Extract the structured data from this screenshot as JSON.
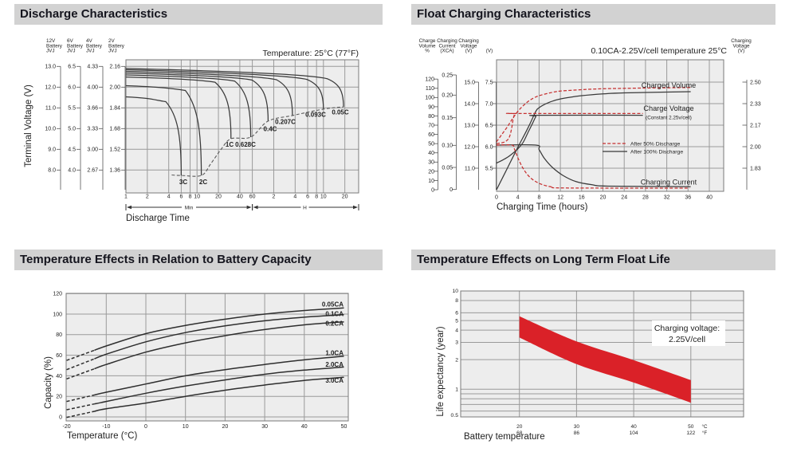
{
  "headers": {
    "discharge": "Discharge Characteristics",
    "float_charging": "Float Charging Characteristics",
    "temp_capacity": "Temperature Effects in Relation to Battery Capacity",
    "float_life": "Temperature Effects on Long Term Float Life"
  },
  "colors": {
    "header_bg": "#d2d2d2",
    "header_text": "#15151e",
    "plot_bg": "#ededed",
    "grid": "#9a9a9a",
    "frame": "#7a7a7a",
    "curve": "#3a3a3a",
    "red_label": "#c42527",
    "red_curve": "#c63030",
    "band_red": "#da2128",
    "cutoff_gray": "#5a5a5a"
  },
  "chart_data": [
    {
      "type": "line",
      "title": "Discharge Characteristics",
      "temperature_note": "Temperature: 25°C (77°F)",
      "xlabel": "Discharge Time",
      "ylabel": "Terminal Voltage (V)",
      "x_unit_spans": [
        "Min",
        "H"
      ],
      "scales": [
        {
          "header": [
            "12V",
            "Battery",
            "JVJ"
          ],
          "ticks": [
            "13.0",
            "12.0",
            "11.0",
            "10.0",
            "9.0",
            "8.0"
          ]
        },
        {
          "header": [
            "6V",
            "Battery",
            "JVJ"
          ],
          "ticks": [
            "6.5",
            "6.0",
            "5.5",
            "5.0",
            "4.5",
            "4.0"
          ]
        },
        {
          "header": [
            "4V",
            "Battery",
            "JVJ"
          ],
          "ticks": [
            "4.33",
            "4.00",
            "3.66",
            "3.33",
            "3.00",
            "2.67"
          ]
        },
        {
          "header": [
            "2V",
            "Battery",
            "JVJ"
          ],
          "ticks": [
            "2.16",
            "2.00",
            "1.84",
            "1.68",
            "1.52",
            "1.36"
          ]
        }
      ],
      "x_ticks_min": [
        1,
        2,
        4,
        6,
        8,
        10,
        20,
        40,
        60
      ],
      "x_ticks_hours": [
        2,
        4,
        6,
        8,
        10,
        20
      ],
      "series": [
        {
          "label": "3C",
          "v_start": 11.53,
          "t_end_min": 6,
          "v_end": 7.74
        },
        {
          "label": "2C",
          "v_start": 12.07,
          "t_end_min": 11.5,
          "v_end": 7.74
        },
        {
          "label": "1C",
          "v_start": 12.49,
          "t_end_min": 30,
          "v_end": 9.51
        },
        {
          "label": "0.628C",
          "v_start": 12.59,
          "t_end_min": 57,
          "v_end": 9.59
        },
        {
          "label": "0.4C",
          "v_start": 12.68,
          "t_end_min": 100,
          "v_end": 10.36
        },
        {
          "label": "0.207C",
          "v_start": 12.76,
          "t_end_min": 220,
          "v_end": 10.63
        },
        {
          "label": "0.093C",
          "v_start": 12.84,
          "t_end_min": 600,
          "v_end": 10.94
        },
        {
          "label": "0.05C",
          "v_start": 12.9,
          "t_end_min": 1150,
          "v_end": 11.05
        }
      ],
      "cutoff_line_t_v": [
        [
          4.4,
          7.76
        ],
        [
          6,
          7.74
        ],
        [
          11.5,
          7.74
        ],
        [
          15.6,
          8.3
        ],
        [
          21.8,
          9.0
        ],
        [
          30,
          9.51
        ],
        [
          57,
          9.59
        ],
        [
          100,
          10.36
        ],
        [
          220,
          10.63
        ],
        [
          600,
          10.94
        ],
        [
          1150,
          11.05
        ]
      ]
    },
    {
      "type": "line",
      "title": "Float Charging Characteristics",
      "condition_note": "0.10CA-2.25V/cell  temperature 25°C",
      "xlabel": "Charging Time (hours)",
      "x_ticks": [
        0,
        4,
        8,
        12,
        16,
        20,
        24,
        28,
        32,
        36,
        40
      ],
      "axes": [
        {
          "header": [
            "Charge",
            "Volume",
            "%"
          ],
          "ticks": [
            "120",
            "110",
            "100",
            "90",
            "80",
            "70",
            "60",
            "50",
            "40",
            "30",
            "20",
            "10",
            "0"
          ]
        },
        {
          "header": [
            "Charging",
            "Current",
            "(XCA)"
          ],
          "ticks": [
            "0.25",
            "0.20",
            "0.15",
            "0.10",
            "0.05",
            "0"
          ]
        },
        {
          "header": [
            "Charging",
            "Voltage",
            "(V)"
          ],
          "ticks": [
            "15.0",
            "14.0",
            "13.0",
            "12.0",
            "11.0"
          ]
        },
        {
          "header": [
            "",
            "",
            "(V)"
          ],
          "ticks": [
            "7.5",
            "7.0",
            "6.5",
            "6.0",
            "5.5"
          ]
        }
      ],
      "right_axis": {
        "header": [
          "Charging",
          "Voltage",
          "(V)"
        ],
        "ticks": [
          "2.50",
          "2.33",
          "2.17",
          "2.00",
          "1.83"
        ]
      },
      "curve_labels": {
        "charged_volume": "Charged Volume",
        "charge_voltage": "Charge Voltage",
        "constant_note": "(Constant 2.25v/cell)",
        "charging_current": "Charging Current"
      },
      "legend": [
        {
          "label": "After  50% Discharge",
          "style": "dashed-red"
        },
        {
          "label": "After 100% Discharge",
          "style": "solid-black"
        }
      ],
      "series": [
        {
          "name": "charged-volume-100",
          "style": "solid",
          "scale": "pct",
          "points": [
            [
              0,
              0
            ],
            [
              2,
              23
            ],
            [
              4,
              46
            ],
            [
              6,
              68
            ],
            [
              7.3,
              84
            ],
            [
              8,
              89
            ],
            [
              10,
              95
            ],
            [
              12,
              98.5
            ],
            [
              16,
              102
            ],
            [
              20,
              104
            ],
            [
              24,
              105
            ],
            [
              28,
              105.5
            ],
            [
              36.5,
              106.3
            ]
          ]
        },
        {
          "name": "charge-voltage-100",
          "style": "solid",
          "scale": "v6",
          "points": [
            [
              0,
              5.62
            ],
            [
              1,
              5.68
            ],
            [
              2,
              5.75
            ],
            [
              3,
              5.84
            ],
            [
              4,
              5.95
            ],
            [
              5,
              6.1
            ],
            [
              6,
              6.35
            ],
            [
              6.8,
              6.55
            ],
            [
              7.4,
              6.7
            ],
            [
              7.8,
              6.73
            ],
            [
              27.5,
              6.73
            ]
          ]
        },
        {
          "name": "charging-current-100",
          "style": "solid",
          "scale": "xca",
          "points": [
            [
              0,
              0.1
            ],
            [
              7.4,
              0.1
            ],
            [
              8,
              0.09
            ],
            [
              9,
              0.07
            ],
            [
              10.5,
              0.05
            ],
            [
              12.5,
              0.032
            ],
            [
              15,
              0.018
            ],
            [
              18,
              0.011
            ],
            [
              21,
              0.008
            ],
            [
              36.5,
              0.007
            ]
          ]
        },
        {
          "name": "charged-volume-50",
          "style": "dashed",
          "scale": "pct",
          "points": [
            [
              0,
              52
            ],
            [
              1,
              60
            ],
            [
              2,
              68
            ],
            [
              3,
              77
            ],
            [
              4,
              85
            ],
            [
              5,
              91
            ],
            [
              6,
              96
            ],
            [
              7,
              99.5
            ],
            [
              8,
              102
            ],
            [
              10,
              105
            ],
            [
              12,
              107
            ],
            [
              16,
              108.5
            ],
            [
              20,
              109.5
            ],
            [
              28,
              110.3
            ],
            [
              36.5,
              110.8
            ]
          ]
        },
        {
          "name": "charge-voltage-50",
          "style": "dashed",
          "scale": "v6",
          "points": [
            [
              0,
              6.07
            ],
            [
              1,
              6.09
            ],
            [
              1.8,
              6.13
            ],
            [
              2.4,
              6.22
            ],
            [
              2.8,
              6.4
            ],
            [
              3.1,
              6.62
            ],
            [
              3.4,
              6.76
            ],
            [
              3.7,
              6.77
            ],
            [
              27.5,
              6.77
            ]
          ]
        },
        {
          "name": "charging-current-50",
          "style": "dashed",
          "scale": "xca",
          "points": [
            [
              0,
              0.1
            ],
            [
              2.9,
              0.1
            ],
            [
              3.4,
              0.09
            ],
            [
              4,
              0.072
            ],
            [
              4.8,
              0.052
            ],
            [
              5.8,
              0.034
            ],
            [
              7,
              0.021
            ],
            [
              8.5,
              0.012
            ],
            [
              10.5,
              0.006
            ],
            [
              13,
              0.004
            ],
            [
              36.3,
              0.0035
            ]
          ]
        }
      ]
    },
    {
      "type": "line",
      "title": "Temperature Effects in Relation to Battery Capacity",
      "xlabel": "Temperature (°C)",
      "ylabel": "Capacity (%)",
      "x_ticks": [
        -20,
        -10,
        0,
        10,
        20,
        30,
        40,
        50
      ],
      "y_ticks": [
        0,
        20,
        40,
        60,
        80,
        100,
        120
      ],
      "dash_until_temp": -13,
      "series": [
        {
          "label": "0.05CA",
          "values": [
            [
              -20,
              55
            ],
            [
              -10,
              69
            ],
            [
              0,
              81
            ],
            [
              10,
              89
            ],
            [
              20,
              95
            ],
            [
              30,
              100
            ],
            [
              40,
              103.5
            ],
            [
              50,
              106
            ]
          ]
        },
        {
          "label": "0.1CA",
          "values": [
            [
              -20,
              46
            ],
            [
              -10,
              61
            ],
            [
              0,
              73
            ],
            [
              10,
              82
            ],
            [
              20,
              88.5
            ],
            [
              30,
              93.5
            ],
            [
              40,
              97
            ],
            [
              50,
              99.5
            ]
          ]
        },
        {
          "label": "0.2CA",
          "values": [
            [
              -20,
              37
            ],
            [
              -10,
              51
            ],
            [
              0,
              63
            ],
            [
              10,
              72
            ],
            [
              20,
              79
            ],
            [
              30,
              85
            ],
            [
              40,
              89.5
            ],
            [
              50,
              92.5
            ]
          ]
        },
        {
          "label": "1.0CA",
          "values": [
            [
              -20,
              15
            ],
            [
              -10,
              24
            ],
            [
              0,
              32
            ],
            [
              10,
              40
            ],
            [
              20,
              46
            ],
            [
              30,
              51
            ],
            [
              40,
              55.5
            ],
            [
              50,
              59
            ]
          ]
        },
        {
          "label": "2.0CA",
          "values": [
            [
              -20,
              7
            ],
            [
              -10,
              15
            ],
            [
              0,
              23
            ],
            [
              10,
              30
            ],
            [
              20,
              36
            ],
            [
              30,
              41.5
            ],
            [
              40,
              45.5
            ],
            [
              50,
              48.5
            ]
          ]
        },
        {
          "label": "3.0CA",
          "values": [
            [
              -20,
              -0.5
            ],
            [
              -10,
              8
            ],
            [
              0,
              13.5
            ],
            [
              10,
              20
            ],
            [
              20,
              26
            ],
            [
              30,
              31
            ],
            [
              40,
              35.5
            ],
            [
              50,
              38.5
            ]
          ]
        }
      ]
    },
    {
      "type": "area",
      "title": "Temperature Effects on Long Term Float Life",
      "xlabel": "Battery temperature",
      "ylabel": "Life expectancy (year)",
      "annotation": [
        "Charging voltage:",
        "2.25V/cell"
      ],
      "x_ticks_c": [
        20,
        30,
        40,
        50
      ],
      "x_ticks_f": [
        68,
        86,
        104,
        122
      ],
      "x_unit_c": "°C",
      "x_unit_f": "°F",
      "y_ticks": [
        "10",
        "8",
        "6",
        "5",
        "4",
        "3",
        "2",
        "1",
        "0.5"
      ],
      "band_top_t_years": [
        [
          20,
          5.53
        ],
        [
          30,
          3.07
        ],
        [
          40,
          1.98
        ],
        [
          50,
          1.24
        ]
      ],
      "band_bottom_t_years": [
        [
          20,
          3.36
        ],
        [
          30,
          1.8
        ],
        [
          40,
          1.17
        ],
        [
          50,
          0.73
        ]
      ]
    }
  ]
}
